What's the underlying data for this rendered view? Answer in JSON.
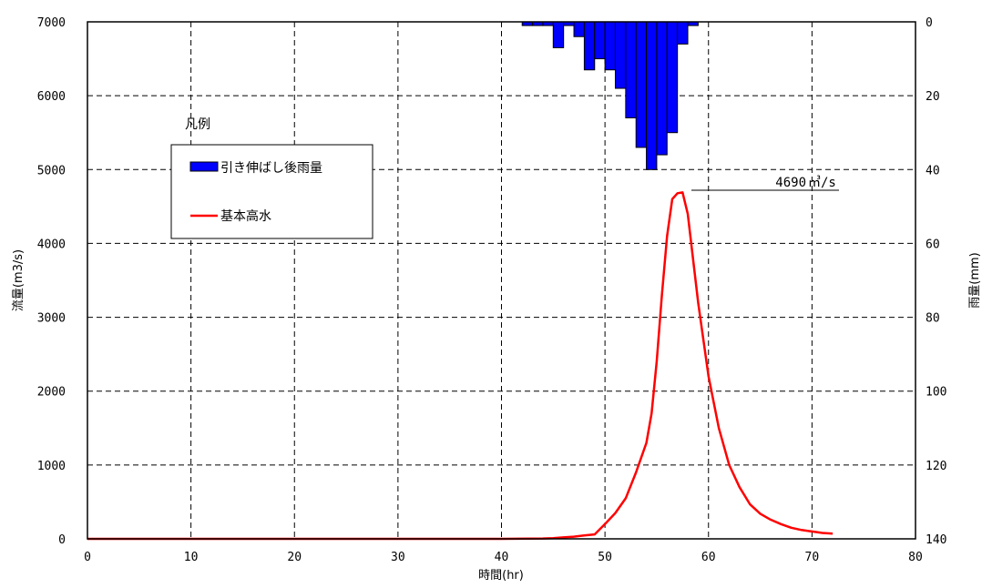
{
  "chart_data": {
    "type": "bar+line",
    "xlabel": "時間(hr)",
    "ylabel_left": "流量(m3/s)",
    "ylabel_right": "雨量(mm)",
    "xlim": [
      0,
      80
    ],
    "ylim_left": [
      0,
      7000
    ],
    "ylim_right_inverted": [
      0,
      140
    ],
    "x_ticks": [
      "0",
      "10",
      "20",
      "30",
      "40",
      "50",
      "60",
      "70",
      "80"
    ],
    "y_left_ticks": [
      "0",
      "1000",
      "2000",
      "3000",
      "4000",
      "5000",
      "6000",
      "7000"
    ],
    "y_right_ticks": [
      "0",
      "20",
      "40",
      "60",
      "80",
      "100",
      "120",
      "140"
    ],
    "grid": true,
    "legend": {
      "title": "凡例",
      "items": [
        "引き伸ばし後雨量",
        "基本高水"
      ]
    },
    "annotation": {
      "value": "4690",
      "unit": "㎥/s"
    },
    "series": [
      {
        "name": "引き伸ばし後雨量",
        "kind": "bar",
        "axis": "right",
        "color": "#0000ff",
        "x": [
          42,
          43,
          44,
          45,
          46,
          47,
          48,
          49,
          50,
          51,
          52,
          53,
          54,
          55,
          56,
          57,
          58
        ],
        "values": [
          1,
          1,
          1,
          7,
          1,
          4,
          13,
          10,
          13,
          18,
          26,
          34,
          40,
          36,
          30,
          6,
          1
        ]
      },
      {
        "name": "基本高水",
        "kind": "line",
        "axis": "left",
        "color": "#ff0000",
        "x": [
          0,
          10,
          20,
          30,
          40,
          44,
          45,
          46,
          47,
          48,
          49,
          50,
          51,
          52,
          53,
          54,
          54.5,
          55,
          55.5,
          56,
          56.5,
          57,
          57.5,
          58,
          58.5,
          59,
          59.5,
          60,
          61,
          62,
          63,
          64,
          65,
          66,
          67,
          68,
          69,
          70,
          71,
          72
        ],
        "values": [
          0,
          0,
          0,
          0,
          0,
          5,
          10,
          20,
          30,
          45,
          60,
          200,
          350,
          550,
          900,
          1300,
          1700,
          2400,
          3300,
          4100,
          4600,
          4680,
          4690,
          4400,
          3800,
          3200,
          2700,
          2200,
          1500,
          1000,
          700,
          470,
          340,
          260,
          200,
          150,
          120,
          100,
          80,
          70
        ]
      }
    ]
  }
}
